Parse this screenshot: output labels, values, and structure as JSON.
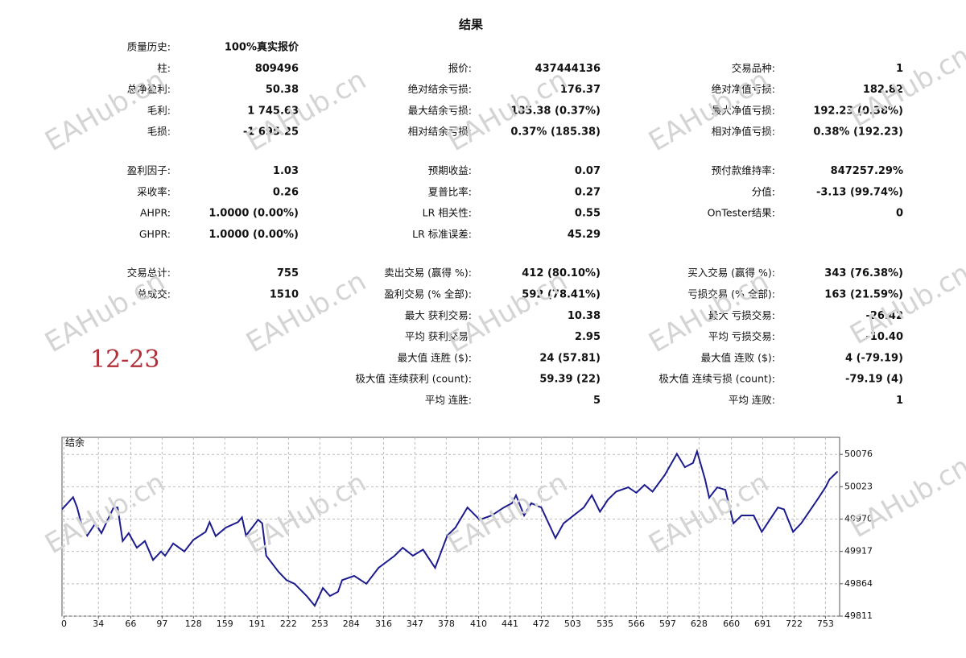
{
  "report": {
    "title": "结果",
    "watermark": "EAHub.cn",
    "annotation": "12-23",
    "sections": [
      [
        [
          {
            "label": "质量历史:",
            "value": "100%真实报价"
          },
          null,
          null
        ],
        [
          {
            "label": "柱:",
            "value": "809496"
          },
          {
            "label": "报价:",
            "value": "437444136"
          },
          {
            "label": "交易品种:",
            "value": "1"
          }
        ],
        [
          {
            "label": "总净盈利:",
            "value": "50.38"
          },
          {
            "label": "绝对结余亏损:",
            "value": "176.37"
          },
          {
            "label": "绝对净值亏损:",
            "value": "182.82"
          }
        ],
        [
          {
            "label": "毛利:",
            "value": "1 745.63"
          },
          {
            "label": "最大结余亏损:",
            "value": "185.38 (0.37%)"
          },
          {
            "label": "最大净值亏损:",
            "value": "192.23 (0.38%)"
          }
        ],
        [
          {
            "label": "毛损:",
            "value": "-1 695.25"
          },
          {
            "label": "相对结余亏损:",
            "value": "0.37% (185.38)"
          },
          {
            "label": "相对净值亏损:",
            "value": "0.38% (192.23)"
          }
        ]
      ],
      [
        [
          {
            "label": "盈利因子:",
            "value": "1.03"
          },
          {
            "label": "预期收益:",
            "value": "0.07"
          },
          {
            "label": "预付款维持率:",
            "value": "847257.29%"
          }
        ],
        [
          {
            "label": "采收率:",
            "value": "0.26"
          },
          {
            "label": "夏普比率:",
            "value": "0.27"
          },
          {
            "label": "分值:",
            "value": "-3.13 (99.74%)"
          }
        ],
        [
          {
            "label": "AHPR:",
            "value": "1.0000 (0.00%)"
          },
          {
            "label": "LR 相关性:",
            "value": "0.55"
          },
          {
            "label": "OnTester结果:",
            "value": "0"
          }
        ],
        [
          {
            "label": "GHPR:",
            "value": "1.0000 (0.00%)"
          },
          {
            "label": "LR 标准误差:",
            "value": "45.29"
          },
          null
        ]
      ],
      [
        [
          {
            "label": "交易总计:",
            "value": "755"
          },
          {
            "label": "卖出交易 (赢得 %):",
            "value": "412 (80.10%)"
          },
          {
            "label": "买入交易 (赢得 %):",
            "value": "343 (76.38%)"
          }
        ],
        [
          {
            "label": "总成交:",
            "value": "1510"
          },
          {
            "label": "盈利交易 (% 全部):",
            "value": "592 (78.41%)"
          },
          {
            "label": "亏损交易 (% 全部):",
            "value": "163 (21.59%)"
          }
        ],
        [
          null,
          {
            "label": "最大 获利交易:",
            "value": "10.38"
          },
          {
            "label": "最大 亏损交易:",
            "value": "-26.42"
          }
        ],
        [
          null,
          {
            "label": "平均 获利交易:",
            "value": "2.95"
          },
          {
            "label": "平均 亏损交易:",
            "value": "-10.40"
          }
        ],
        [
          null,
          {
            "label": "最大值 连胜 ($):",
            "value": "24 (57.81)"
          },
          {
            "label": "最大值 连败 ($):",
            "value": "4 (-79.19)"
          }
        ],
        [
          null,
          {
            "label": "极大值 连续获利 (count):",
            "value": "59.39 (22)"
          },
          {
            "label": "极大值 连续亏损 (count):",
            "value": "-79.19 (4)"
          }
        ],
        [
          null,
          {
            "label": "平均 连胜:",
            "value": "5"
          },
          {
            "label": "平均 连败:",
            "value": "1"
          }
        ]
      ]
    ]
  },
  "chart_data": {
    "type": "line",
    "title": "结余",
    "x": [
      -2,
      9,
      13,
      17,
      23,
      31,
      37,
      49,
      53,
      58,
      64,
      72,
      80,
      88,
      96,
      100,
      108,
      119,
      128,
      140,
      144,
      150,
      160,
      172,
      176,
      180,
      192,
      196,
      200,
      212,
      220,
      228,
      240,
      248,
      256,
      263,
      271,
      275,
      287,
      299,
      311,
      327,
      335,
      345,
      355,
      367,
      379,
      387,
      399,
      411,
      423,
      435,
      443,
      447,
      455,
      462,
      472,
      486,
      494,
      504,
      514,
      522,
      530,
      538,
      546,
      558,
      566,
      574,
      582,
      594,
      606,
      614,
      622,
      626,
      634,
      638,
      646,
      654,
      662,
      670,
      682,
      690,
      698,
      706,
      712,
      721,
      729,
      745,
      753,
      757,
      765
    ],
    "series": [
      {
        "name": "结余",
        "color": "#1c1c8e",
        "values": [
          49986,
          50006,
          49989,
          49963,
          49943,
          49963,
          49947,
          49989,
          49989,
          49934,
          49947,
          49923,
          49934,
          49903,
          49917,
          49910,
          49930,
          49917,
          49936,
          49949,
          49965,
          49942,
          49956,
          49965,
          49973,
          49943,
          49969,
          49963,
          49910,
          49884,
          49870,
          49864,
          49844,
          49828,
          49857,
          49844,
          49851,
          49870,
          49877,
          49864,
          49890,
          49910,
          49923,
          49910,
          49920,
          49890,
          49943,
          49956,
          49989,
          49969,
          49976,
          49989,
          49996,
          50009,
          49976,
          49996,
          49989,
          49939,
          49963,
          49976,
          49989,
          50009,
          49982,
          50002,
          50015,
          50022,
          50013,
          50026,
          50015,
          50042,
          50077,
          50055,
          50062,
          50081,
          50035,
          50005,
          50022,
          50018,
          49963,
          49976,
          49976,
          49949,
          49969,
          49989,
          49986,
          49949,
          49963,
          50002,
          50022,
          50035,
          50048
        ]
      }
    ],
    "xlim": [
      -2,
      767
    ],
    "ylim": [
      49811,
      50104
    ],
    "xticks": [
      0,
      34,
      66,
      97,
      128,
      159,
      191,
      222,
      253,
      284,
      316,
      347,
      378,
      410,
      441,
      472,
      503,
      535,
      566,
      597,
      628,
      660,
      691,
      722,
      753
    ],
    "yticks": [
      49811,
      49864,
      49917,
      49970,
      50023,
      50076
    ],
    "grid": true
  }
}
